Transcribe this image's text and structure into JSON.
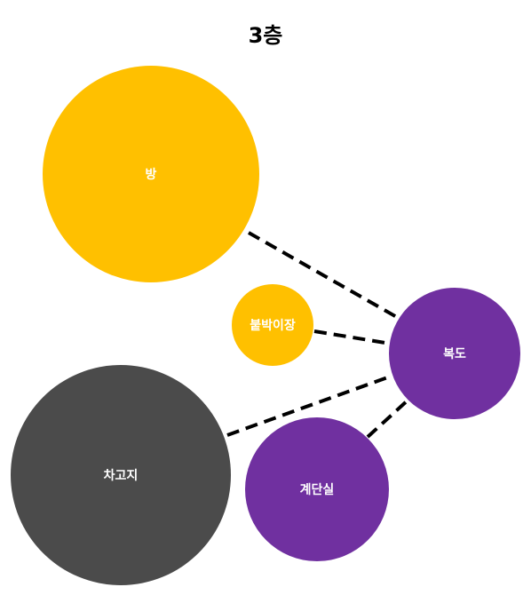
{
  "title": "3층",
  "colors": {
    "yellow": "#FFC000",
    "purple": "#7030A0",
    "dark": "#4B4B4B",
    "line": "#000000",
    "label": "#FFFFFF"
  },
  "nodes": [
    {
      "id": "room",
      "label": "방",
      "color": "yellow"
    },
    {
      "id": "closet",
      "label": "붙박이장",
      "color": "yellow"
    },
    {
      "id": "hallway",
      "label": "복도",
      "color": "purple"
    },
    {
      "id": "garage",
      "label": "차고지",
      "color": "dark"
    },
    {
      "id": "stairs",
      "label": "계단실",
      "color": "purple"
    }
  ],
  "edges": [
    {
      "from": "room",
      "to": "hallway",
      "style": "dashed"
    },
    {
      "from": "closet",
      "to": "hallway",
      "style": "dashed"
    },
    {
      "from": "garage",
      "to": "hallway",
      "style": "dashed"
    },
    {
      "from": "stairs",
      "to": "hallway",
      "style": "dashed"
    }
  ]
}
